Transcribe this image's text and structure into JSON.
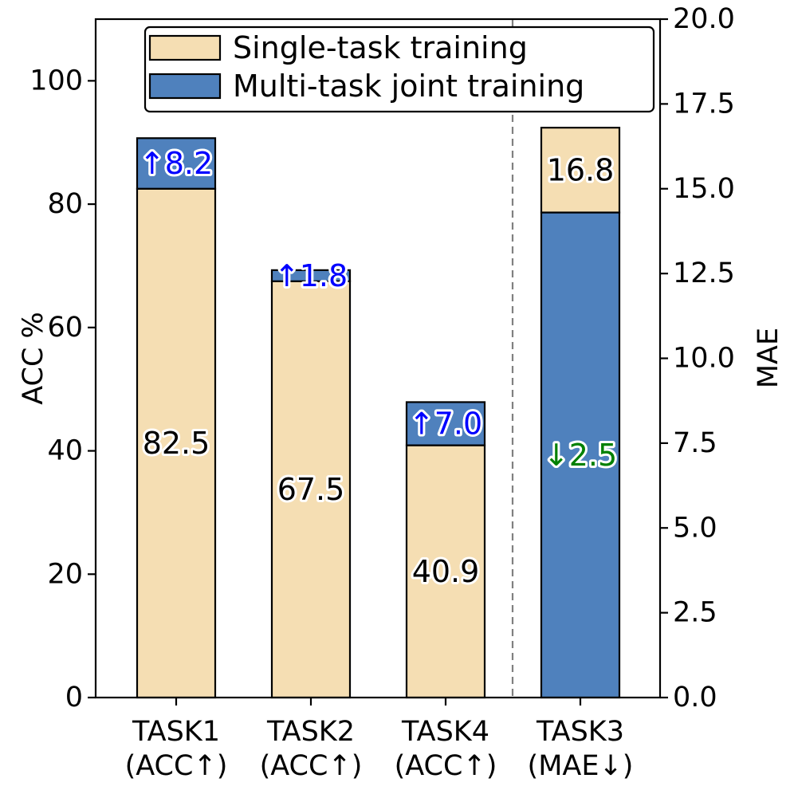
{
  "chart_data": {
    "type": "bar",
    "stacked": true,
    "categories": [
      {
        "line1": "TASK1",
        "line2": "(ACC↑)"
      },
      {
        "line1": "TASK2",
        "line2": "(ACC↑)"
      },
      {
        "line1": "TASK4",
        "line2": "(ACC↑)"
      },
      {
        "line1": "TASK3",
        "line2": "(MAE↓)"
      }
    ],
    "series": [
      {
        "name": "Single-task training",
        "color": "#f5deb3"
      },
      {
        "name": "Multi-task joint training",
        "color": "#4f81bd"
      }
    ],
    "bars": [
      {
        "axis": "left",
        "bottom_series": 0,
        "top_series": 1,
        "bottom": 82.5,
        "top": 8.2,
        "bottom_label": "82.5",
        "top_label": "↑8.2",
        "top_label_color": "#0000ff",
        "bottom_label_color": "#000000"
      },
      {
        "axis": "left",
        "bottom_series": 0,
        "top_series": 1,
        "bottom": 67.5,
        "top": 1.8,
        "bottom_label": "67.5",
        "top_label": "↑1.8",
        "top_label_color": "#0000ff",
        "bottom_label_color": "#000000"
      },
      {
        "axis": "left",
        "bottom_series": 0,
        "top_series": 1,
        "bottom": 40.9,
        "top": 7.0,
        "bottom_label": "40.9",
        "top_label": "↑7.0",
        "top_label_color": "#0000ff",
        "bottom_label_color": "#000000"
      },
      {
        "axis": "right",
        "bottom_series": 1,
        "top_series": 0,
        "bottom": 14.3,
        "top": 2.5,
        "bottom_label": "↓2.5",
        "top_label": "16.8",
        "top_label_color": "#000000",
        "bottom_label_color": "#008000"
      }
    ],
    "y_left": {
      "label": "ACC %",
      "range": [
        0,
        110
      ],
      "ticks": [
        0,
        20,
        40,
        60,
        80,
        100
      ]
    },
    "y_right": {
      "label": "MAE",
      "range": [
        0,
        20
      ],
      "ticks": [
        "0.0",
        "2.5",
        "5.0",
        "7.5",
        "10.0",
        "12.5",
        "15.0",
        "17.5",
        "20.0"
      ]
    },
    "legend_position": "top-center",
    "separator": "dashed vertical line between TASK4 and TASK3",
    "grid": false
  }
}
